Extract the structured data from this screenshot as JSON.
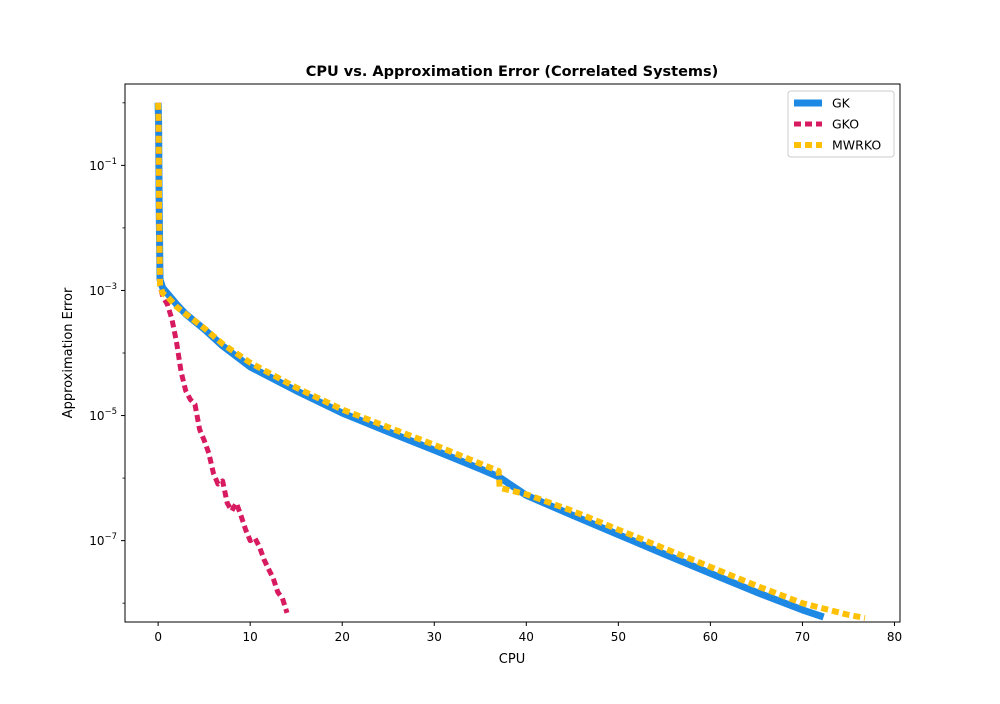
{
  "chart_data": {
    "type": "line",
    "title": "CPU vs. Approximation Error (Correlated Systems)",
    "xlabel": "CPU",
    "ylabel": "Approximation Error",
    "yscale": "log",
    "xlim": [
      -3.6,
      80.6
    ],
    "ylim": [
      5e-09,
      2
    ],
    "xticks": [
      {
        "value": 0,
        "label": "0"
      },
      {
        "value": 10,
        "label": "10"
      },
      {
        "value": 20,
        "label": "20"
      },
      {
        "value": 30,
        "label": "30"
      },
      {
        "value": 40,
        "label": "40"
      },
      {
        "value": 50,
        "label": "50"
      },
      {
        "value": 60,
        "label": "60"
      },
      {
        "value": 70,
        "label": "70"
      },
      {
        "value": 80,
        "label": "80"
      }
    ],
    "yticks": [
      {
        "value": 0.1,
        "base": "10",
        "exp": "−1"
      },
      {
        "value": 0.001,
        "base": "10",
        "exp": "−3"
      },
      {
        "value": 1e-05,
        "base": "10",
        "exp": "−5"
      },
      {
        "value": 1e-07,
        "base": "10",
        "exp": "−7"
      }
    ],
    "grid": false,
    "legend_position": "top-right",
    "series": [
      {
        "name": "GK",
        "color": "#1e88e5",
        "style": "solid",
        "x": [
          0.0,
          0.05,
          0.1,
          0.2,
          0.5,
          1,
          2,
          3,
          5,
          7,
          10,
          15,
          20,
          25,
          30,
          35,
          37,
          40,
          45,
          50,
          55,
          60,
          65,
          70,
          72.3
        ],
        "y": [
          1.0,
          0.5,
          0.03,
          0.0015,
          0.0011,
          0.0009,
          0.0006,
          0.00042,
          0.00024,
          0.00013,
          6e-05,
          2.5e-05,
          1.1e-05,
          5.5e-06,
          2.8e-06,
          1.4e-06,
          1.05e-06,
          5.3e-07,
          2.55e-07,
          1.25e-07,
          6.1e-08,
          3e-08,
          1.5e-08,
          7.8e-09,
          6e-09
        ]
      },
      {
        "name": "GKO",
        "color": "#d81b60",
        "style": "dashed",
        "x": [
          0.0,
          0.05,
          0.1,
          0.2,
          0.5,
          1.0,
          1.5,
          2.0,
          2.5,
          3.0,
          3.5,
          4.0,
          4.5,
          5.0,
          5.5,
          6.0,
          6.5,
          7.0,
          7.5,
          8.0,
          8.5,
          9.0,
          9.5,
          10.0,
          10.5,
          11.0,
          11.5,
          12.0,
          12.5,
          13.0,
          13.5,
          14.0
        ],
        "y": [
          1.0,
          0.04,
          0.005,
          0.0012,
          0.0008,
          0.0006,
          0.00035,
          0.00015,
          5e-05,
          2.5e-05,
          1.8e-05,
          1.5e-05,
          6e-06,
          4e-06,
          2.5e-06,
          1.2e-06,
          8e-07,
          9e-07,
          4e-07,
          3e-07,
          4e-07,
          2.5e-07,
          1.5e-07,
          1e-07,
          1.1e-07,
          8e-08,
          5e-08,
          3.5e-08,
          2.5e-08,
          1.5e-08,
          1.2e-08,
          7e-09
        ]
      },
      {
        "name": "MWRKO",
        "color": "#ffc107",
        "style": "dashed",
        "x": [
          0.0,
          0.05,
          0.1,
          0.2,
          0.5,
          1,
          2,
          3,
          5,
          7,
          10,
          15,
          20,
          25,
          30,
          35,
          37,
          37.1,
          40,
          45,
          50,
          55,
          60,
          65,
          70,
          75,
          76.8
        ],
        "y": [
          1.0,
          0.5,
          0.02,
          0.0012,
          0.0009,
          0.0008,
          0.00055,
          0.00042,
          0.00025,
          0.00014,
          7e-05,
          2.8e-05,
          1.25e-05,
          6.5e-06,
          3.4e-06,
          1.7e-06,
          1.3e-06,
          7e-07,
          5.5e-07,
          3e-07,
          1.5e-07,
          7.5e-08,
          3.8e-08,
          1.9e-08,
          1e-08,
          6.5e-09,
          5.8e-09
        ]
      }
    ]
  }
}
